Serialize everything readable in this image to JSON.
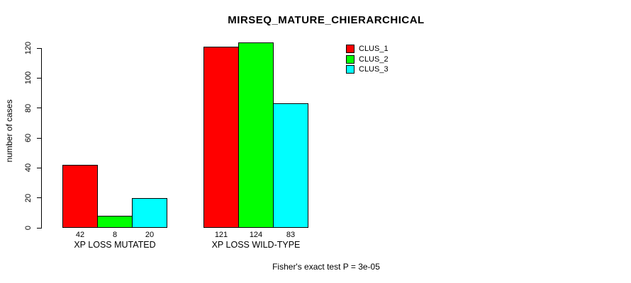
{
  "chart_data": {
    "type": "bar",
    "title": "MIRSEQ_MATURE_CHIERARCHICAL",
    "xlabel": "",
    "ylabel": "number of cases",
    "categories": [
      "XP LOSS MUTATED",
      "XP LOSS WILD-TYPE"
    ],
    "series": [
      {
        "name": "CLUS_1",
        "color": "#ff0000",
        "values": [
          42,
          121
        ]
      },
      {
        "name": "CLUS_2",
        "color": "#00ff00",
        "values": [
          8,
          124
        ]
      },
      {
        "name": "CLUS_3",
        "color": "#00ffff",
        "values": [
          20,
          83
        ]
      }
    ],
    "yticks": [
      0,
      20,
      40,
      60,
      80,
      100,
      120
    ],
    "ylim": [
      0,
      120
    ],
    "grid": false,
    "bar_value_labels_shown": true,
    "legend_position": "top-right",
    "annotation": "Fisher's exact test P = 3e-05"
  }
}
